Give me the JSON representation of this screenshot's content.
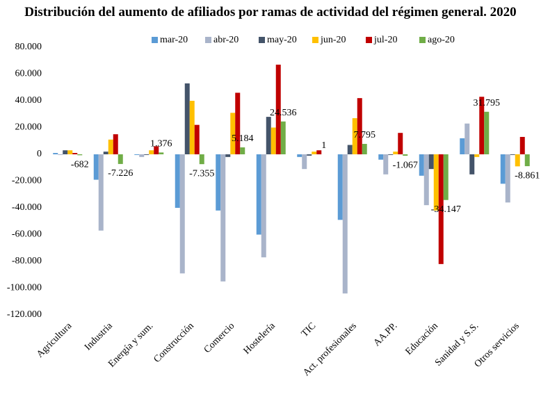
{
  "chart_data": {
    "type": "bar",
    "title": "Distribución del aumento de afiliados por ramas de actividad  del régimen general. 2020",
    "categories": [
      "Agricultura",
      "Industria",
      "Energía y sum.",
      "Construcción",
      "Comercio",
      "Hostelería",
      "TIC",
      "Act. profesionales",
      "AA.PP.",
      "Educación",
      "Sanidad y S.S.",
      "Otros servicios"
    ],
    "series": [
      {
        "name": "mar-20",
        "color": "#5b9bd5",
        "values": [
          1000,
          -19000,
          -500,
          -40000,
          -42000,
          -60000,
          -2000,
          -49000,
          -4000,
          -16000,
          12000,
          -22000
        ]
      },
      {
        "name": "abr-20",
        "color": "#a9b4ca",
        "values": [
          -500,
          -57000,
          -2000,
          -89000,
          -95000,
          -77000,
          -11000,
          -104000,
          -15000,
          -38000,
          23000,
          -36000
        ]
      },
      {
        "name": "may-20",
        "color": "#44546a",
        "values": [
          3000,
          2000,
          -500,
          53000,
          -2000,
          28000,
          -1000,
          7000,
          -500,
          -11000,
          -15000,
          -500
        ]
      },
      {
        "name": "jun-20",
        "color": "#ffc000",
        "values": [
          3000,
          11000,
          3000,
          40000,
          31000,
          20000,
          2000,
          27000,
          2000,
          -42000,
          -2000,
          -9000
        ]
      },
      {
        "name": "jul-20",
        "color": "#c00000",
        "values": [
          1000,
          15000,
          6000,
          22000,
          46000,
          67000,
          3000,
          42000,
          16000,
          -82000,
          43000,
          13000
        ]
      },
      {
        "name": "ago-20",
        "color": "#70ad47",
        "values": [
          -682,
          -7226,
          1376,
          -7355,
          5184,
          24536,
          1,
          7795,
          -1067,
          -34147,
          31795,
          -8861
        ],
        "value_labels": [
          "-682",
          "-7.226",
          "1.376",
          "-7.355",
          "5.184",
          "24.536",
          "1",
          "7.795",
          "-1.067",
          "-34.147",
          "31.795",
          "-8.861"
        ]
      }
    ],
    "ylim": [
      -120000,
      80000
    ],
    "yticks": [
      {
        "value": 80000,
        "label": "80.000"
      },
      {
        "value": 60000,
        "label": "60.000"
      },
      {
        "value": 40000,
        "label": "40.000"
      },
      {
        "value": 20000,
        "label": "20.000"
      },
      0,
      {
        "value": -20000,
        "label": "-20.000"
      },
      {
        "value": -40000,
        "label": "-40.000"
      },
      {
        "value": -60000,
        "label": "-60.000"
      },
      {
        "value": -80000,
        "label": "-80.000"
      },
      {
        "value": -100000,
        "label": "-100.000"
      },
      {
        "value": -120000,
        "label": "-120.000"
      }
    ],
    "grid": false
  }
}
